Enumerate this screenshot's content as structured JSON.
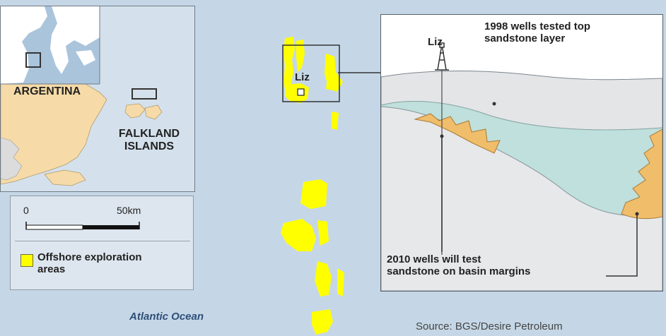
{
  "inset_map": {
    "labels": {
      "country": "ARGENTINA",
      "islands_line1": "FALKLAND",
      "islands_line2": "ISLANDS"
    }
  },
  "scale_bar": {
    "start_label": "0",
    "end_label": "50km",
    "length_km": 50
  },
  "legend": {
    "swatch_color": "#ffff00",
    "label_line1": "Offshore exploration",
    "label_line2": "areas"
  },
  "map": {
    "ocean_label": "Atlantic Ocean",
    "well_label": "Liz",
    "exploration_color": "#ffff00",
    "sea_color": "#c5d7e6"
  },
  "cross_section": {
    "well_label": "Liz",
    "top_callout_line1": "1998 wells tested top",
    "top_callout_line2": "sandstone layer",
    "bottom_callout_line1": "2010 wells will test",
    "bottom_callout_line2": "sandstone on basin margins",
    "colors": {
      "upper_layer": "#e3e5e7",
      "basin_fill": "#bfe0dc",
      "sandstone": "#f0bd6a",
      "lower_layer": "#e6e8ea"
    }
  },
  "source": "Source: BGS/Desire Petroleum"
}
